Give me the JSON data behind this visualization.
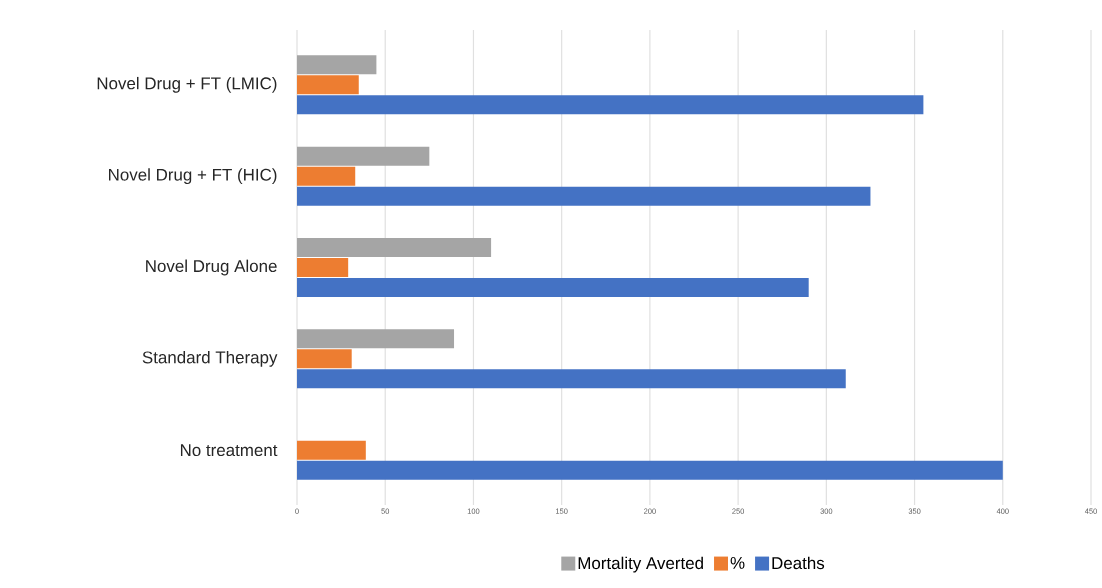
{
  "chart_data": {
    "type": "bar",
    "orientation": "horizontal",
    "categories": [
      "Novel Drug + FT (LMIC)",
      "Novel Drug + FT (HIC)",
      "Novel Drug Alone",
      "Standard Therapy",
      "No treatment"
    ],
    "series": [
      {
        "name": "Mortality Averted",
        "color": "#a5a5a5",
        "values": [
          45,
          75,
          110,
          89,
          null
        ]
      },
      {
        "name": "%",
        "color": "#ed7d31",
        "values": [
          35,
          33,
          29,
          31,
          39
        ]
      },
      {
        "name": "Deaths",
        "color": "#4472c4",
        "values": [
          355,
          325,
          290,
          311,
          400
        ]
      }
    ],
    "xlim": [
      0,
      450
    ],
    "xticks": [
      0,
      50,
      100,
      150,
      200,
      250,
      300,
      350,
      400,
      450
    ],
    "grid": "x",
    "legend": "bottom"
  }
}
